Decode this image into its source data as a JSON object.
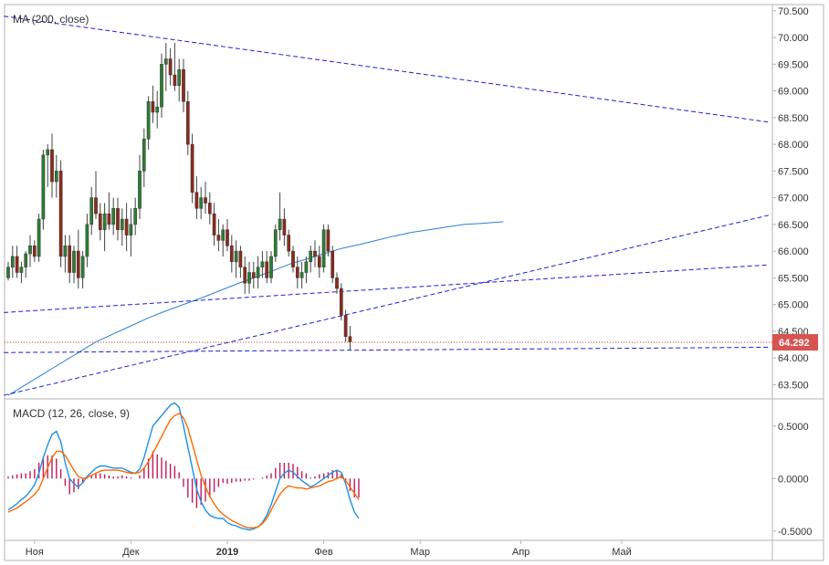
{
  "chart_data": [
    {
      "type": "candlestick",
      "title": "MA (200, close)",
      "ylim": [
        63.25,
        70.6
      ],
      "y_ticks": [
        "70.500",
        "70.000",
        "69.500",
        "69.000",
        "68.500",
        "68.000",
        "67.500",
        "67.000",
        "66.500",
        "66.000",
        "65.500",
        "65.000",
        "64.500",
        "64.000",
        "63.500"
      ],
      "y_tick_values": [
        70.5,
        70.0,
        69.5,
        69.0,
        68.5,
        68.0,
        67.5,
        67.0,
        66.5,
        66.0,
        65.5,
        65.0,
        64.5,
        64.0,
        63.5
      ],
      "last_price_label": "64.292",
      "last_price": 64.292,
      "candles": [
        [
          65.5,
          65.8,
          65.45,
          65.7
        ],
        [
          65.7,
          66.1,
          65.5,
          65.9
        ],
        [
          65.9,
          66.1,
          65.5,
          65.6
        ],
        [
          65.6,
          65.8,
          65.4,
          65.7
        ],
        [
          65.7,
          66.0,
          65.5,
          65.95
        ],
        [
          65.95,
          66.3,
          65.7,
          66.1
        ],
        [
          66.1,
          66.2,
          65.8,
          65.9
        ],
        [
          65.9,
          66.7,
          65.8,
          66.6
        ],
        [
          66.6,
          67.9,
          66.4,
          67.8
        ],
        [
          67.8,
          68.0,
          67.2,
          67.9
        ],
        [
          67.9,
          68.2,
          67.0,
          67.3
        ],
        [
          67.3,
          67.8,
          67.0,
          67.5
        ],
        [
          67.5,
          67.7,
          65.7,
          65.9
        ],
        [
          65.9,
          66.3,
          65.6,
          66.1
        ],
        [
          66.1,
          66.3,
          65.4,
          65.6
        ],
        [
          65.6,
          66.1,
          65.4,
          66.0
        ],
        [
          66.0,
          66.4,
          65.3,
          65.5
        ],
        [
          65.5,
          66.0,
          65.3,
          65.9
        ],
        [
          65.9,
          66.7,
          65.7,
          66.5
        ],
        [
          66.5,
          67.2,
          66.3,
          67.0
        ],
        [
          67.0,
          67.5,
          66.6,
          66.7
        ],
        [
          66.7,
          66.9,
          66.2,
          66.4
        ],
        [
          66.4,
          66.9,
          66.0,
          66.7
        ],
        [
          66.7,
          67.1,
          66.4,
          66.5
        ],
        [
          66.5,
          67.0,
          66.3,
          66.8
        ],
        [
          66.8,
          67.0,
          66.2,
          66.4
        ],
        [
          66.4,
          66.8,
          66.1,
          66.6
        ],
        [
          66.6,
          66.9,
          66.0,
          66.3
        ],
        [
          66.3,
          66.8,
          65.9,
          66.5
        ],
        [
          66.5,
          67.0,
          66.3,
          66.8
        ],
        [
          66.8,
          67.8,
          66.6,
          67.5
        ],
        [
          67.5,
          68.3,
          67.2,
          68.1
        ],
        [
          68.1,
          68.9,
          67.9,
          68.8
        ],
        [
          68.8,
          69.1,
          68.4,
          68.6
        ],
        [
          68.6,
          69.0,
          68.3,
          68.7
        ],
        [
          68.7,
          69.7,
          68.5,
          69.5
        ],
        [
          69.5,
          69.9,
          69.0,
          69.6
        ],
        [
          69.6,
          69.8,
          69.1,
          69.3
        ],
        [
          69.3,
          69.9,
          69.0,
          69.1
        ],
        [
          69.1,
          69.6,
          68.8,
          69.4
        ],
        [
          69.4,
          69.6,
          68.6,
          68.8
        ],
        [
          68.8,
          69.0,
          67.8,
          68.0
        ],
        [
          68.0,
          68.2,
          66.9,
          67.1
        ],
        [
          67.1,
          67.4,
          66.6,
          66.8
        ],
        [
          66.8,
          67.2,
          66.6,
          67.0
        ],
        [
          67.0,
          67.3,
          66.7,
          66.9
        ],
        [
          66.9,
          67.1,
          66.5,
          66.7
        ],
        [
          66.7,
          66.9,
          66.1,
          66.3
        ],
        [
          66.3,
          66.6,
          66.0,
          66.2
        ],
        [
          66.2,
          66.5,
          65.9,
          66.4
        ],
        [
          66.4,
          66.6,
          66.0,
          66.1
        ],
        [
          66.1,
          66.3,
          65.6,
          65.8
        ],
        [
          65.8,
          66.2,
          65.5,
          66.0
        ],
        [
          66.0,
          66.1,
          65.5,
          65.7
        ],
        [
          65.7,
          65.9,
          65.2,
          65.4
        ],
        [
          65.4,
          65.8,
          65.2,
          65.6
        ],
        [
          65.6,
          65.8,
          65.3,
          65.5
        ],
        [
          65.5,
          65.9,
          65.3,
          65.7
        ],
        [
          65.7,
          66.0,
          65.5,
          65.8
        ],
        [
          65.8,
          66.0,
          65.4,
          65.5
        ],
        [
          65.5,
          66.0,
          65.4,
          65.9
        ],
        [
          65.9,
          66.5,
          65.8,
          66.4
        ],
        [
          66.4,
          67.1,
          66.2,
          66.6
        ],
        [
          66.6,
          66.8,
          66.1,
          66.3
        ],
        [
          66.3,
          66.4,
          65.9,
          66.0
        ],
        [
          66.0,
          66.1,
          65.6,
          65.7
        ],
        [
          65.7,
          65.9,
          65.3,
          65.5
        ],
        [
          65.5,
          65.8,
          65.3,
          65.6
        ],
        [
          65.6,
          65.9,
          65.4,
          65.8
        ],
        [
          65.8,
          66.1,
          65.6,
          66.0
        ],
        [
          66.0,
          66.2,
          65.7,
          65.9
        ],
        [
          65.9,
          66.1,
          65.5,
          65.7
        ],
        [
          65.7,
          66.5,
          65.6,
          66.4
        ],
        [
          66.4,
          66.5,
          65.9,
          66.0
        ],
        [
          66.0,
          66.1,
          65.4,
          65.5
        ],
        [
          65.5,
          65.6,
          65.2,
          65.3
        ],
        [
          65.3,
          65.4,
          64.7,
          64.8
        ],
        [
          64.8,
          64.9,
          64.3,
          64.4
        ],
        [
          64.4,
          64.6,
          64.15,
          64.3
        ]
      ],
      "ma_line": [
        [
          0,
          63.3
        ],
        [
          4,
          63.5
        ],
        [
          8,
          63.7
        ],
        [
          12,
          63.9
        ],
        [
          16,
          64.1
        ],
        [
          20,
          64.3
        ],
        [
          24,
          64.45
        ],
        [
          28,
          64.6
        ],
        [
          32,
          64.75
        ],
        [
          36,
          64.88
        ],
        [
          40,
          65.0
        ],
        [
          44,
          65.12
        ],
        [
          48,
          65.25
        ],
        [
          52,
          65.38
        ],
        [
          56,
          65.5
        ],
        [
          60,
          65.62
        ],
        [
          64,
          65.75
        ],
        [
          68,
          65.85
        ],
        [
          72,
          65.95
        ],
        [
          76,
          66.05
        ],
        [
          80,
          66.12
        ],
        [
          84,
          66.2
        ],
        [
          88,
          66.28
        ],
        [
          92,
          66.35
        ],
        [
          96,
          66.4
        ],
        [
          100,
          66.45
        ],
        [
          104,
          66.5
        ],
        [
          108,
          66.52
        ],
        [
          113,
          66.55
        ]
      ],
      "trend_lines": [
        [
          [
            -1,
            70.4
          ],
          [
            175,
            68.4
          ]
        ],
        [
          [
            -1,
            64.1
          ],
          [
            175,
            64.2
          ]
        ],
        [
          [
            -1,
            64.85
          ],
          [
            175,
            65.75
          ]
        ],
        [
          [
            -1,
            63.3
          ],
          [
            175,
            66.7
          ]
        ]
      ],
      "x_ticks": [
        "Ноя",
        "Дек",
        "2019",
        "Фев",
        "Мар",
        "Апр",
        "Май"
      ],
      "x_tick_index": [
        6,
        28,
        50,
        72,
        94,
        117,
        140
      ]
    },
    {
      "type": "line",
      "title": "MACD (12, 26, close, 9)",
      "ylim": [
        -0.58,
        0.75
      ],
      "y_ticks": [
        "0.5000",
        "0.0000",
        "-0.5000"
      ],
      "y_tick_values": [
        0.5,
        0.0,
        -0.5
      ],
      "series": [
        {
          "color": "#1e90e6",
          "values": [
            -0.3,
            -0.27,
            -0.24,
            -0.2,
            -0.17,
            -0.12,
            -0.06,
            0.05,
            0.2,
            0.32,
            0.42,
            0.45,
            0.35,
            0.15,
            0.0,
            -0.05,
            -0.08,
            -0.04,
            0.02,
            0.06,
            0.1,
            0.12,
            0.12,
            0.11,
            0.1,
            0.1,
            0.1,
            0.08,
            0.06,
            0.05,
            0.09,
            0.2,
            0.35,
            0.5,
            0.55,
            0.6,
            0.65,
            0.7,
            0.72,
            0.68,
            0.5,
            0.3,
            0.1,
            -0.1,
            -0.22,
            -0.3,
            -0.35,
            -0.37,
            -0.38,
            -0.38,
            -0.42,
            -0.44,
            -0.45,
            -0.47,
            -0.48,
            -0.49,
            -0.48,
            -0.46,
            -0.42,
            -0.35,
            -0.25,
            -0.12,
            0.0,
            0.05,
            0.08,
            0.06,
            0.02,
            -0.02,
            -0.05,
            -0.08,
            -0.06,
            -0.03,
            0.0,
            0.03,
            0.06,
            0.08,
            0.06,
            -0.05,
            -0.2,
            -0.32,
            -0.38
          ]
        },
        {
          "color": "#ff6a00",
          "values": [
            -0.32,
            -0.3,
            -0.28,
            -0.25,
            -0.22,
            -0.19,
            -0.15,
            -0.1,
            0.0,
            0.1,
            0.2,
            0.26,
            0.26,
            0.22,
            0.15,
            0.08,
            0.02,
            0.0,
            0.01,
            0.03,
            0.05,
            0.07,
            0.08,
            0.08,
            0.08,
            0.08,
            0.07,
            0.06,
            0.05,
            0.05,
            0.06,
            0.1,
            0.16,
            0.24,
            0.32,
            0.4,
            0.48,
            0.56,
            0.6,
            0.62,
            0.58,
            0.48,
            0.33,
            0.18,
            0.03,
            -0.08,
            -0.17,
            -0.24,
            -0.3,
            -0.34,
            -0.37,
            -0.4,
            -0.42,
            -0.44,
            -0.46,
            -0.47,
            -0.47,
            -0.46,
            -0.43,
            -0.38,
            -0.3,
            -0.22,
            -0.15,
            -0.1,
            -0.07,
            -0.08,
            -0.09,
            -0.09,
            -0.1,
            -0.09,
            -0.08,
            -0.07,
            -0.05,
            -0.03,
            -0.02,
            0.0,
            0.02,
            -0.02,
            -0.08,
            -0.14,
            -0.2
          ]
        }
      ],
      "histogram_color": "#c2185b",
      "x_ticks": [
        "Ноя",
        "Дек",
        "2019",
        "Фев",
        "Мар",
        "Апр",
        "Май"
      ],
      "x_tick_index": [
        6,
        28,
        50,
        72,
        94,
        117,
        140
      ]
    }
  ]
}
